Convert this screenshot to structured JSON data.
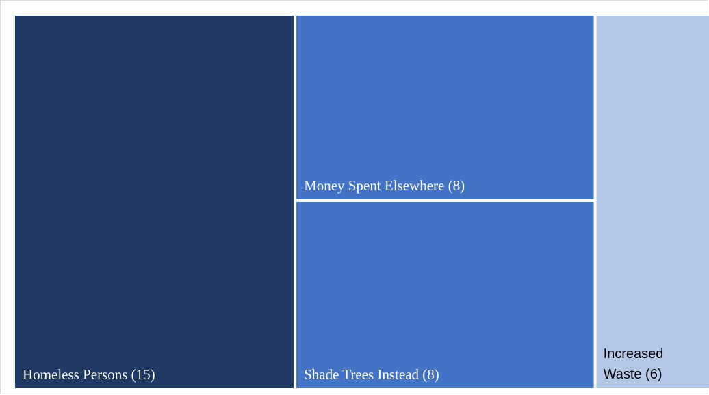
{
  "chart_data": {
    "type": "treemap",
    "title": "",
    "items": [
      {
        "label": "Homeless Persons (15)",
        "name": "Homeless Persons",
        "value": 15,
        "color": "#203864",
        "text_color": "#ffffff"
      },
      {
        "label": "Money Spent Elsewhere (8)",
        "name": "Money Spent Elsewhere",
        "value": 8,
        "color": "#4472c4",
        "text_color": "#ffffff"
      },
      {
        "label": "Shade Trees Instead (8)",
        "name": "Shade Trees Instead",
        "value": 8,
        "color": "#4472c4",
        "text_color": "#ffffff"
      },
      {
        "label_lines": [
          "Increased",
          "Waste (6)"
        ],
        "name": "Increased Waste",
        "value": 6,
        "color": "#b4c7e7",
        "text_color": "#000000"
      }
    ]
  }
}
